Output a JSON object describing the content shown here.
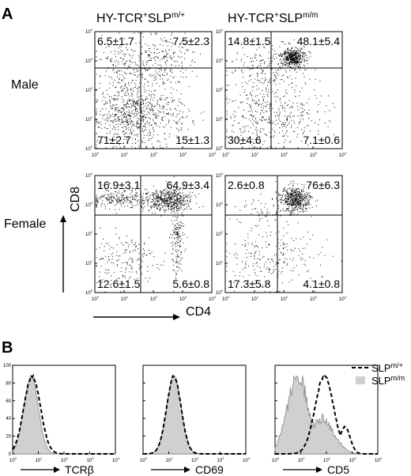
{
  "panel_a": {
    "label": "A",
    "columns": [
      {
        "base": "HY-TCR",
        "sup1": "+",
        "mid": "SLP",
        "sup2": "m/+"
      },
      {
        "base": "HY-TCR",
        "sup1": "+",
        "mid": "SLP",
        "sup2": "m/m"
      }
    ],
    "rows": [
      "Male",
      "Female"
    ],
    "y_axis_label": "CD8",
    "x_axis_label": "CD4",
    "tick_labels": [
      "10",
      "10",
      "10",
      "10",
      "10"
    ],
    "tick_exponents": [
      "0",
      "1",
      "2",
      "3",
      "4"
    ],
    "plots": [
      {
        "quadrants": {
          "ul": "6.5±1.7",
          "ur": "7.5±2.3",
          "ll": "71±2.7",
          "lr": "15±1.3"
        }
      },
      {
        "quadrants": {
          "ul": "14.8±1.5",
          "ur": "48.1±5.4",
          "ll": "30±4.6",
          "lr": "7.1±0.6"
        }
      },
      {
        "quadrants": {
          "ul": "16.9±3.1",
          "ur": "64.9±3.4",
          "ll": "12.6±1.5",
          "lr": "5.6±0.8"
        }
      },
      {
        "quadrants": {
          "ul": "2.6±0.8",
          "ur": "76±6.3",
          "ll": "17.3±5.8",
          "lr": "4.1±0.8"
        }
      }
    ]
  },
  "panel_b": {
    "label": "B",
    "y_tick_labels": [
      "100",
      "80",
      "60",
      "40",
      "20",
      "0"
    ],
    "histograms": [
      {
        "x_label": "TCRβ"
      },
      {
        "x_label": "CD69"
      },
      {
        "x_label": "CD5"
      }
    ],
    "legend": [
      {
        "base": "SLP",
        "sup": "m/+",
        "style": "dashed"
      },
      {
        "base": "SLP",
        "sup": "m/m",
        "style": "filled"
      }
    ]
  }
}
